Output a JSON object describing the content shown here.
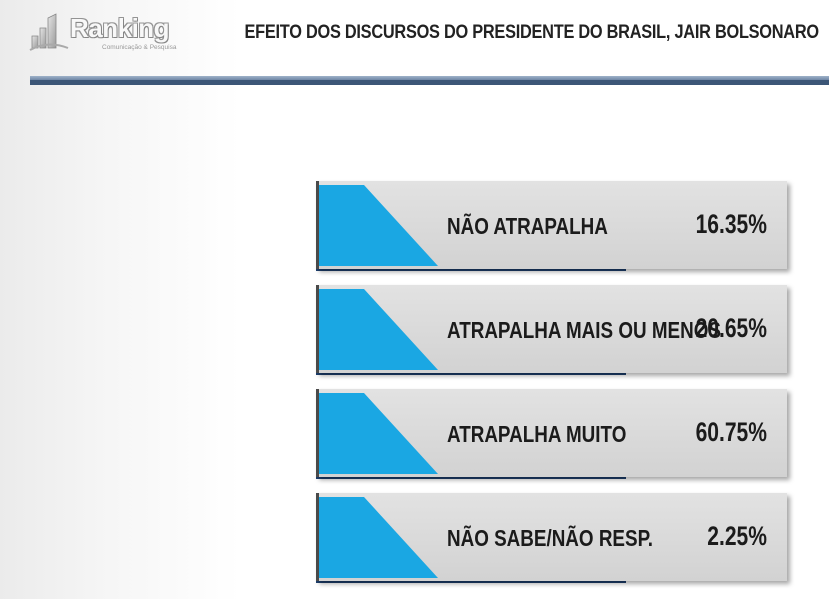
{
  "header": {
    "logo_text": "Ranking",
    "logo_subtext": "Comunicação & Pesquisa",
    "title": "EFEITO DOS DISCURSOS DO PRESIDENTE DO BRASIL, JAIR BOLSONARO"
  },
  "colors": {
    "accent_cyan": "#1aa7e3",
    "card_gray": "#d8d8d8",
    "rule_navy": "#3c5677"
  },
  "chart_data": {
    "type": "bar",
    "title": "EFEITO DOS DISCURSOS DO PRESIDENTE DO BRASIL, JAIR BOLSONARO",
    "categories": [
      "NÃO ATRAPALHA",
      "ATRAPALHA MAIS OU MENOS",
      "ATRAPALHA MUITO",
      "NÃO SABE/NÃO RESP."
    ],
    "values": [
      16.35,
      20.65,
      60.75,
      2.25
    ],
    "value_labels": [
      "16.35%",
      "20.65%",
      "60.75%",
      "2.25%"
    ],
    "unit": "%"
  }
}
